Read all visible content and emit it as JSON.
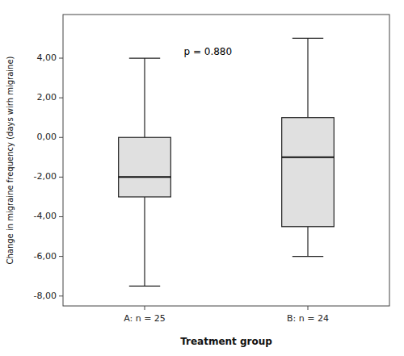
{
  "chart_data": {
    "type": "box",
    "categories": [
      "A: n = 25",
      "B: n = 24"
    ],
    "boxes": [
      {
        "median": -2.0,
        "q1": -3.0,
        "q3": 0.0,
        "whisker_low": -7.5,
        "whisker_high": 4.0
      },
      {
        "median": -1.0,
        "q1": -4.5,
        "q3": 1.0,
        "whisker_low": -6.0,
        "whisker_high": 5.0
      }
    ],
    "xlabel": "Treatment group",
    "ylabel": "Change in migraine frequency (days wirh migraine)",
    "annotation": "p = 0.880",
    "ylim": [
      -8.5,
      6.2
    ],
    "yticks": [
      {
        "value": -8.0,
        "label": "-8,00"
      },
      {
        "value": -6.0,
        "label": "-6,00"
      },
      {
        "value": -4.0,
        "label": "-4,00"
      },
      {
        "value": -2.0,
        "label": "-2,00"
      },
      {
        "value": 0.0,
        "label": "0,00"
      },
      {
        "value": 2.0,
        "label": "2,00"
      },
      {
        "value": 4.0,
        "label": "4,00"
      }
    ],
    "color": "#e0e0e0",
    "grid": false
  }
}
